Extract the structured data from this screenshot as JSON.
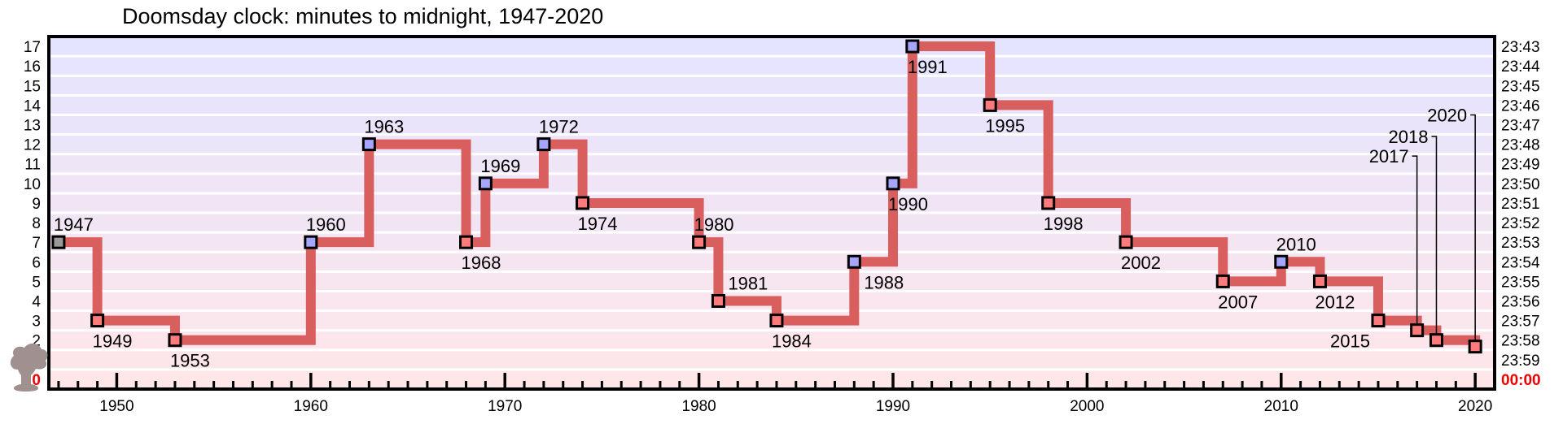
{
  "chart_data": {
    "type": "line",
    "title": "Doomsday clock: minutes to midnight, 1947-2020",
    "xlim": [
      1946.5,
      2021
    ],
    "ylim": [
      -0.5,
      17.5
    ],
    "x_ticks": [
      1950,
      1960,
      1970,
      1980,
      1990,
      2000,
      2010,
      2020
    ],
    "x_tick_labels": [
      "1950",
      "1960",
      "1970",
      "1980",
      "1990",
      "2000",
      "2010",
      "2020"
    ],
    "left_ticks": [
      "0",
      "1",
      "2",
      "3",
      "4",
      "5",
      "6",
      "7",
      "8",
      "9",
      "10",
      "11",
      "12",
      "13",
      "14",
      "15",
      "16",
      "17"
    ],
    "right_ticks": [
      "00:00",
      "23:59",
      "23:58",
      "23:57",
      "23:56",
      "23:55",
      "23:54",
      "23:53",
      "23:52",
      "23:51",
      "23:50",
      "23:49",
      "23:48",
      "23:47",
      "23:46",
      "23:45",
      "23:44",
      "23:43"
    ],
    "points": [
      {
        "x": 1947,
        "y": 7,
        "label": "1947",
        "kind": "start"
      },
      {
        "x": 1949,
        "y": 3,
        "label": "1949",
        "kind": "worse"
      },
      {
        "x": 1953,
        "y": 2,
        "label": "1953",
        "kind": "worse"
      },
      {
        "x": 1960,
        "y": 7,
        "label": "1960",
        "kind": "better"
      },
      {
        "x": 1963,
        "y": 12,
        "label": "1963",
        "kind": "better"
      },
      {
        "x": 1968,
        "y": 7,
        "label": "1968",
        "kind": "worse"
      },
      {
        "x": 1969,
        "y": 10,
        "label": "1969",
        "kind": "better"
      },
      {
        "x": 1972,
        "y": 12,
        "label": "1972",
        "kind": "better"
      },
      {
        "x": 1974,
        "y": 9,
        "label": "1974",
        "kind": "worse"
      },
      {
        "x": 1980,
        "y": 7,
        "label": "1980",
        "kind": "worse"
      },
      {
        "x": 1981,
        "y": 4,
        "label": "1981",
        "kind": "worse"
      },
      {
        "x": 1984,
        "y": 3,
        "label": "1984",
        "kind": "worse"
      },
      {
        "x": 1988,
        "y": 6,
        "label": "1988",
        "kind": "better"
      },
      {
        "x": 1990,
        "y": 10,
        "label": "1990",
        "kind": "better"
      },
      {
        "x": 1991,
        "y": 17,
        "label": "1991",
        "kind": "better"
      },
      {
        "x": 1995,
        "y": 14,
        "label": "1995",
        "kind": "worse"
      },
      {
        "x": 1998,
        "y": 9,
        "label": "1998",
        "kind": "worse"
      },
      {
        "x": 2002,
        "y": 7,
        "label": "2002",
        "kind": "worse"
      },
      {
        "x": 2007,
        "y": 5,
        "label": "2007",
        "kind": "worse"
      },
      {
        "x": 2010,
        "y": 6,
        "label": "2010",
        "kind": "better"
      },
      {
        "x": 2012,
        "y": 5,
        "label": "2012",
        "kind": "worse"
      },
      {
        "x": 2015,
        "y": 3,
        "label": "2015",
        "kind": "worse"
      },
      {
        "x": 2017,
        "y": 2.5,
        "label": "2017",
        "kind": "worse"
      },
      {
        "x": 2018,
        "y": 2,
        "label": "2018",
        "kind": "worse"
      },
      {
        "x": 2020,
        "y": 1.67,
        "label": "2020",
        "kind": "worse"
      }
    ],
    "grid": true,
    "legend": "none",
    "colors": {
      "line": "#d95f5f",
      "worse": "#ff7b7b",
      "better": "#a6a6ff",
      "start": "#9a9a9a",
      "zero_label": "#ee0000",
      "cloud_icon": "#a09090"
    }
  }
}
